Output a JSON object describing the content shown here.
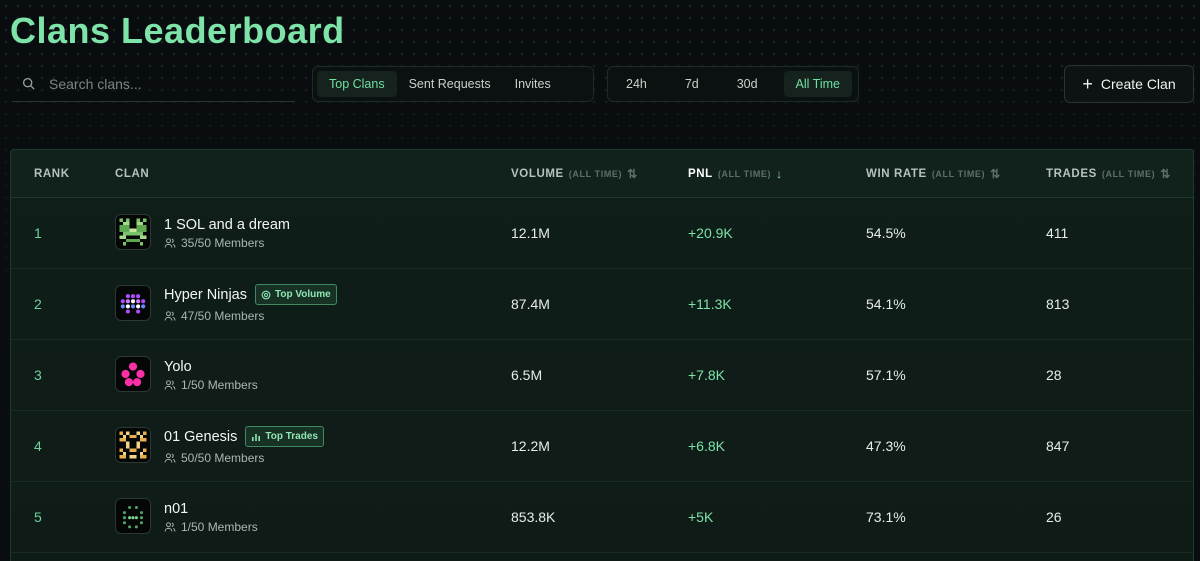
{
  "page": {
    "title": "Clans Leaderboard"
  },
  "search": {
    "placeholder": "Search clans..."
  },
  "tabs": [
    {
      "label": "Top Clans",
      "active": true
    },
    {
      "label": "Sent Requests",
      "active": false
    },
    {
      "label": "Invites",
      "active": false
    }
  ],
  "timeframes": [
    {
      "label": "24h",
      "active": false
    },
    {
      "label": "7d",
      "active": false
    },
    {
      "label": "30d",
      "active": false
    },
    {
      "label": "All Time",
      "active": true
    }
  ],
  "create_button": {
    "label": "Create Clan"
  },
  "table": {
    "headers": {
      "rank": "RANK",
      "clan": "CLAN",
      "volume": "VOLUME",
      "volume_sub": "(ALL TIME)",
      "pnl": "PNL",
      "pnl_sub": "(ALL TIME)",
      "winrate": "WIN RATE",
      "winrate_sub": "(ALL TIME)",
      "trades": "TRADES",
      "trades_sub": "(ALL TIME)"
    },
    "rows": [
      {
        "rank": "1",
        "name": "1 SOL and a dream",
        "members": "35/50 Members",
        "badge": "",
        "volume": "12.1M",
        "pnl": "+20.9K",
        "winrate": "54.5%",
        "trades": "411",
        "avatar": "green-pixel-face-avatar"
      },
      {
        "rank": "2",
        "name": "Hyper Ninjas",
        "members": "47/50 Members",
        "badge": "Top Volume",
        "badge_icon": "coin-icon",
        "volume": "87.4M",
        "pnl": "+11.3K",
        "winrate": "54.1%",
        "trades": "813",
        "avatar": "purple-pixel-avatar"
      },
      {
        "rank": "3",
        "name": "Yolo",
        "members": "1/50 Members",
        "badge": "",
        "volume": "6.5M",
        "pnl": "+7.8K",
        "winrate": "57.1%",
        "trades": "28",
        "avatar": "pink-dots-avatar"
      },
      {
        "rank": "4",
        "name": "01 Genesis",
        "members": "50/50 Members",
        "badge": "Top Trades",
        "badge_icon": "bar-chart-icon",
        "volume": "12.2M",
        "pnl": "+6.8K",
        "winrate": "47.3%",
        "trades": "847",
        "avatar": "gold-pixel-avatar"
      },
      {
        "rank": "5",
        "name": "n01",
        "members": "1/50 Members",
        "badge": "",
        "volume": "853.8K",
        "pnl": "+5K",
        "winrate": "73.1%",
        "trades": "26",
        "avatar": "green-dots-face-avatar"
      }
    ]
  },
  "colors": {
    "accent": "#7ee3a8",
    "background": "#0a0d0f",
    "table_bg": "#0f1e19"
  }
}
